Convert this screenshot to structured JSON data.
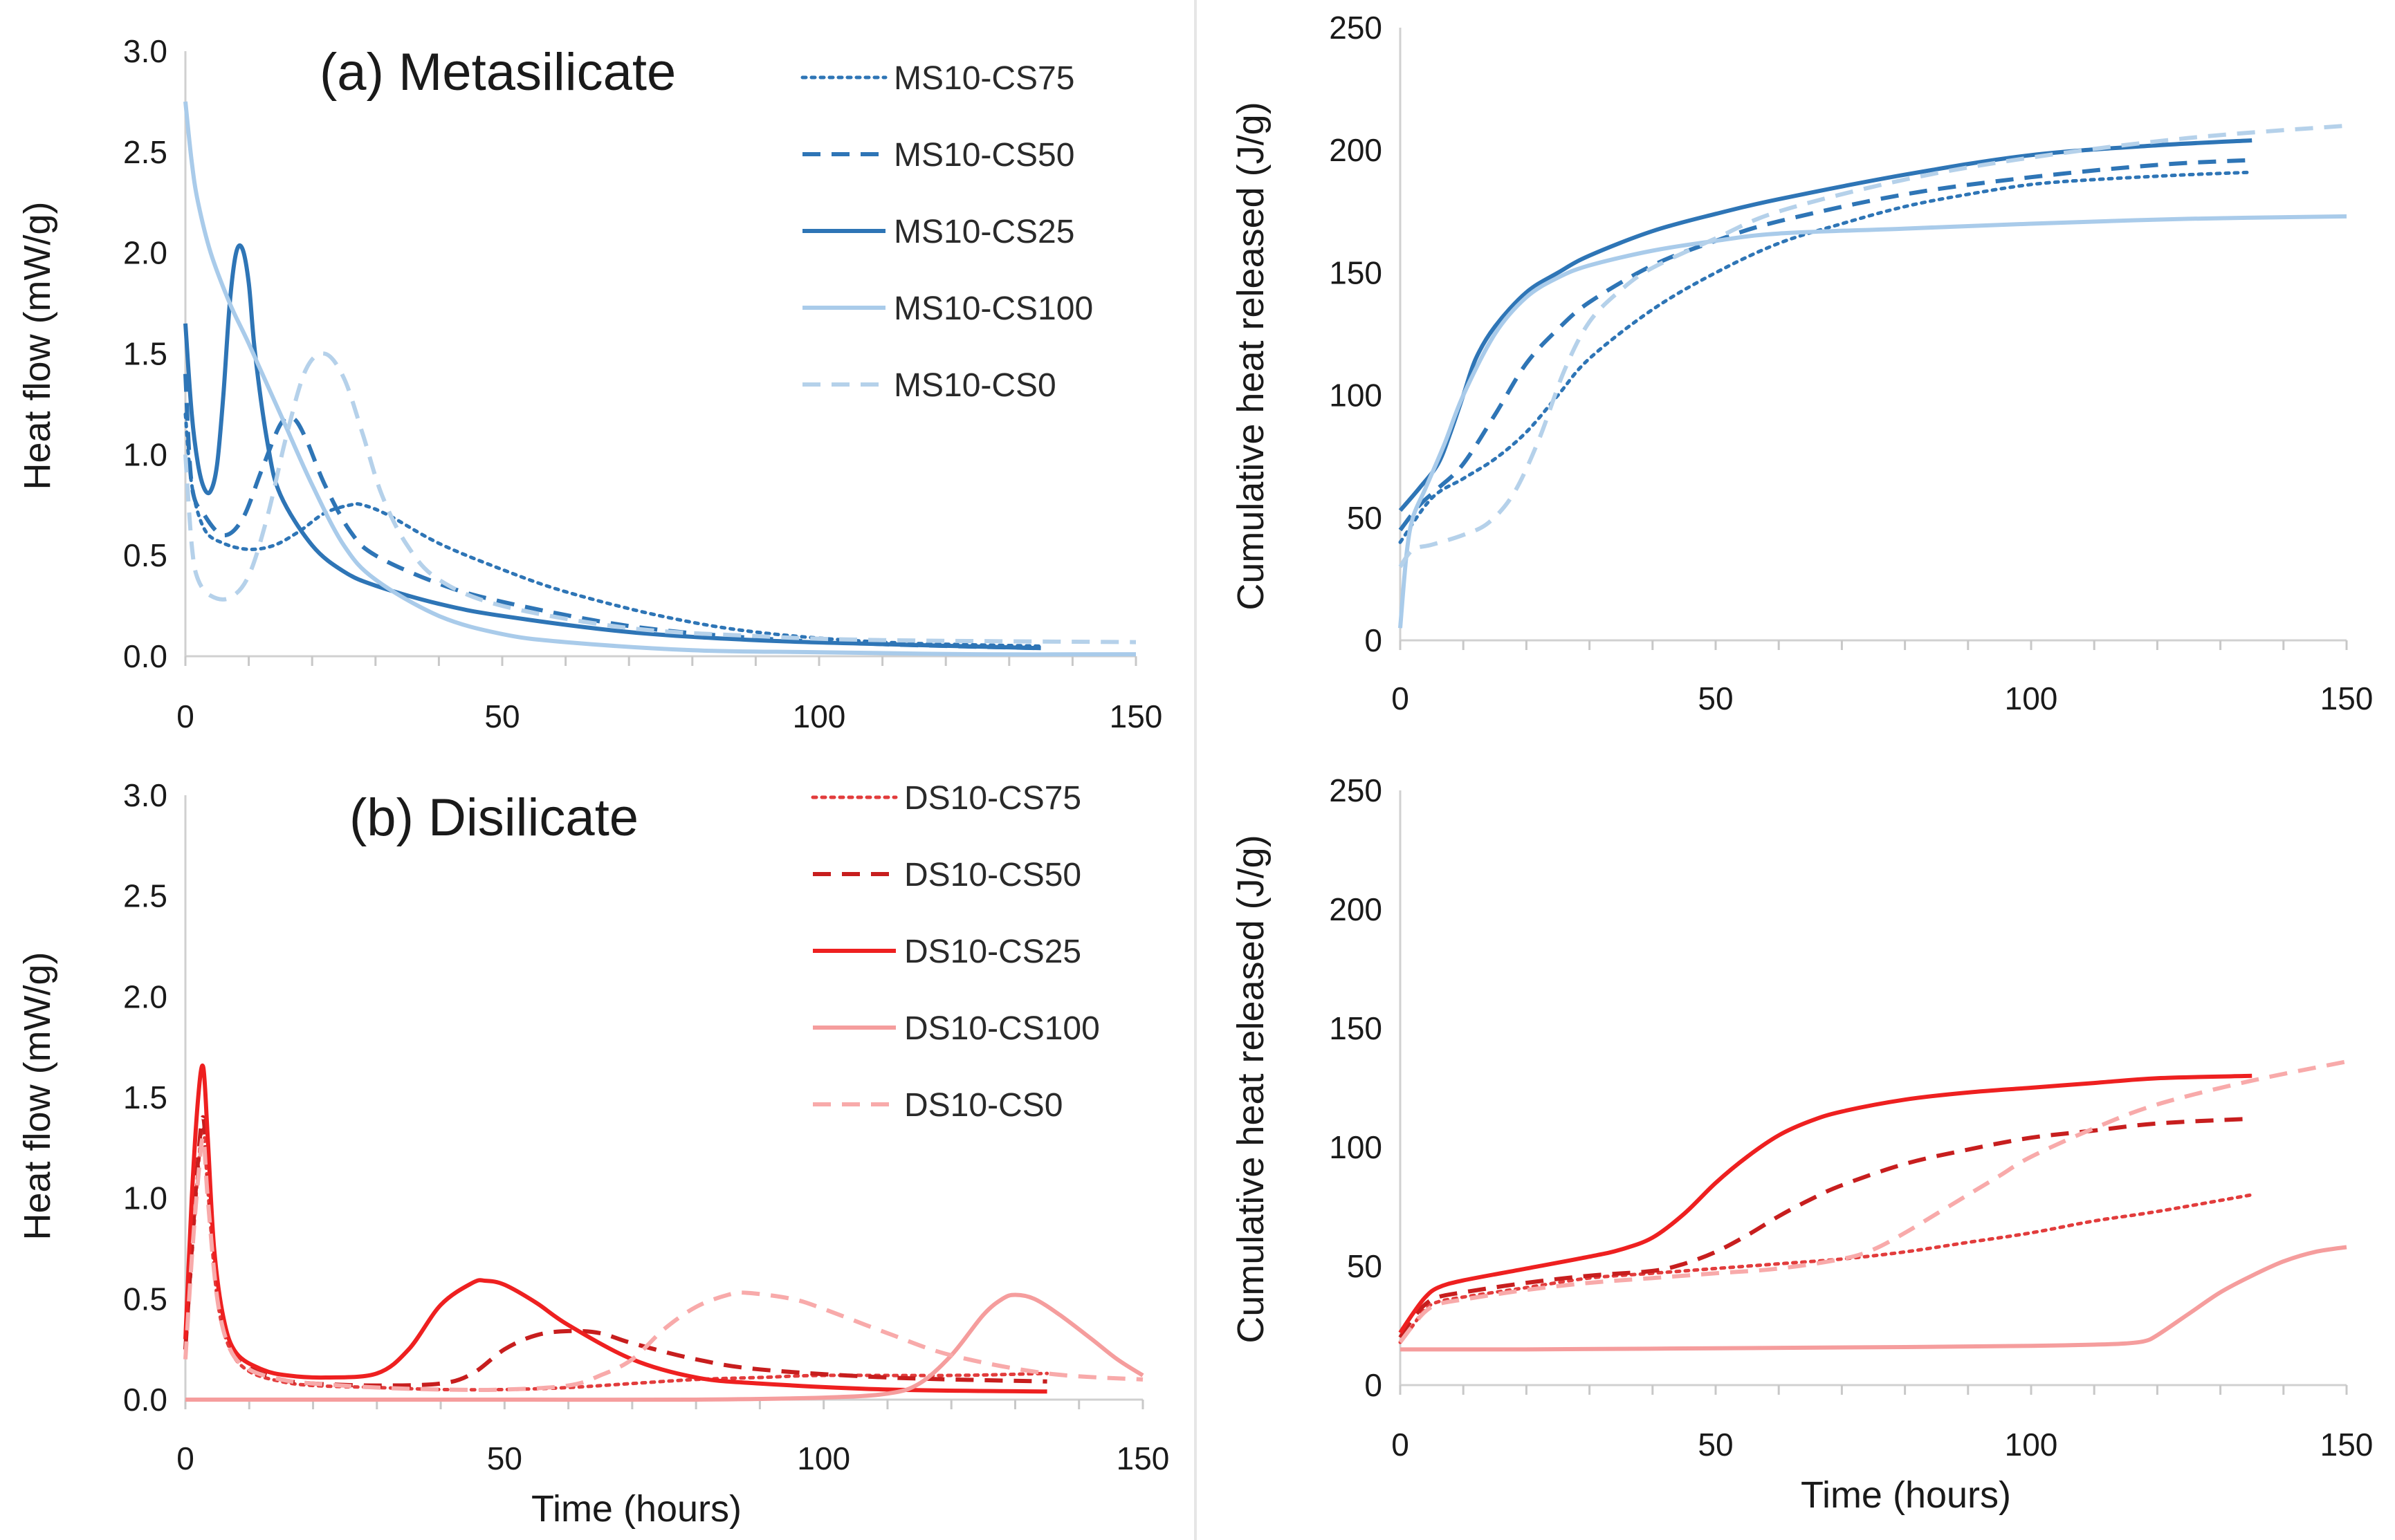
{
  "chart_data": [
    {
      "id": "hf-ms",
      "type": "line",
      "title": "(a) Metasilicate",
      "xlabel": "",
      "ylabel": "Heat flow (mW/g)",
      "xlim": [
        0,
        150
      ],
      "ylim": [
        0,
        3.0
      ],
      "xticks": [
        0,
        50,
        100,
        150
      ],
      "yticks": [
        0.0,
        0.5,
        1.0,
        1.5,
        2.0,
        2.5,
        3.0
      ],
      "ytick_decimals": 1,
      "legend": "top-right",
      "series": [
        {
          "name": "MS10-CS75",
          "color": "#2e75b6",
          "dash": "dotted",
          "x": [
            0,
            1,
            3,
            6,
            10,
            14,
            18,
            22,
            26,
            28,
            32,
            40,
            50,
            60,
            75,
            90,
            110,
            135
          ],
          "y": [
            1.2,
            0.85,
            0.63,
            0.56,
            0.53,
            0.55,
            0.62,
            0.71,
            0.75,
            0.75,
            0.7,
            0.56,
            0.43,
            0.32,
            0.2,
            0.12,
            0.07,
            0.05
          ]
        },
        {
          "name": "MS10-CS50",
          "color": "#2e75b6",
          "dash": "dashed",
          "x": [
            0,
            1,
            3,
            6,
            9,
            12,
            15,
            17,
            19,
            22,
            26,
            30,
            40,
            50,
            70,
            90,
            110,
            135
          ],
          "y": [
            1.4,
            0.85,
            0.7,
            0.6,
            0.68,
            0.92,
            1.15,
            1.18,
            1.08,
            0.85,
            0.62,
            0.5,
            0.36,
            0.27,
            0.15,
            0.09,
            0.06,
            0.04
          ]
        },
        {
          "name": "MS10-CS25",
          "color": "#2e75b6",
          "dash": "solid",
          "x": [
            0,
            1,
            2,
            3,
            4,
            5,
            6,
            7,
            8,
            9,
            10,
            11,
            13,
            15,
            20,
            25,
            30,
            40,
            50,
            70,
            90,
            110,
            135
          ],
          "y": [
            1.65,
            1.2,
            0.95,
            0.83,
            0.82,
            0.95,
            1.3,
            1.75,
            2.0,
            2.02,
            1.85,
            1.5,
            1.05,
            0.8,
            0.55,
            0.42,
            0.35,
            0.26,
            0.2,
            0.12,
            0.08,
            0.06,
            0.04
          ]
        },
        {
          "name": "MS10-CS100",
          "color": "#a9cbea",
          "dash": "solid",
          "x": [
            0,
            1,
            2,
            4,
            7,
            10,
            15,
            20,
            25,
            30,
            40,
            50,
            60,
            80,
            100,
            125,
            150
          ],
          "y": [
            2.75,
            2.45,
            2.25,
            2.0,
            1.75,
            1.55,
            1.2,
            0.85,
            0.55,
            0.38,
            0.2,
            0.11,
            0.07,
            0.03,
            0.02,
            0.01,
            0.01
          ]
        },
        {
          "name": "MS10-CS0",
          "color": "#b5d1ea",
          "dash": "dashed",
          "x": [
            0,
            1,
            2,
            4,
            7,
            10,
            13,
            16,
            19,
            22,
            25,
            28,
            31,
            35,
            40,
            50,
            70,
            90,
            110,
            150
          ],
          "y": [
            1.0,
            0.55,
            0.38,
            0.3,
            0.29,
            0.4,
            0.7,
            1.1,
            1.42,
            1.5,
            1.38,
            1.1,
            0.8,
            0.55,
            0.38,
            0.25,
            0.14,
            0.1,
            0.08,
            0.07
          ]
        }
      ]
    },
    {
      "id": "cum-ms",
      "type": "line",
      "title": "",
      "xlabel": "",
      "ylabel": "Cumulative heat released (J/g)",
      "xlim": [
        0,
        150
      ],
      "ylim": [
        0,
        250
      ],
      "xticks": [
        0,
        50,
        100,
        150
      ],
      "yticks": [
        0,
        50,
        100,
        150,
        200,
        250
      ],
      "ytick_decimals": 0,
      "legend": "none",
      "series": [
        {
          "name": "MS10-CS75",
          "color": "#2e75b6",
          "dash": "dotted",
          "x": [
            0,
            5,
            10,
            15,
            20,
            25,
            30,
            40,
            50,
            60,
            70,
            80,
            90,
            100,
            110,
            125,
            135
          ],
          "y": [
            40,
            58,
            66,
            74,
            85,
            100,
            115,
            135,
            150,
            162,
            170,
            177,
            182,
            186,
            188,
            190,
            191
          ]
        },
        {
          "name": "MS10-CS50",
          "color": "#2e75b6",
          "dash": "dashed",
          "x": [
            0,
            3,
            6,
            10,
            15,
            20,
            25,
            30,
            40,
            50,
            60,
            80,
            100,
            120,
            135
          ],
          "y": [
            45,
            55,
            62,
            72,
            92,
            113,
            127,
            138,
            153,
            163,
            171,
            182,
            189,
            194,
            196
          ]
        },
        {
          "name": "MS10-CS25",
          "color": "#2e75b6",
          "dash": "solid",
          "x": [
            0,
            3,
            6,
            8,
            10,
            12,
            15,
            20,
            25,
            30,
            40,
            50,
            60,
            80,
            100,
            120,
            135
          ],
          "y": [
            53,
            62,
            72,
            85,
            100,
            115,
            128,
            142,
            150,
            157,
            167,
            174,
            180,
            190,
            198,
            202,
            204
          ]
        },
        {
          "name": "MS10-CS100",
          "color": "#a9cbea",
          "dash": "solid",
          "x": [
            0,
            1,
            2,
            4,
            7,
            10,
            15,
            20,
            25,
            30,
            40,
            50,
            60,
            80,
            100,
            125,
            150
          ],
          "y": [
            5,
            35,
            50,
            62,
            80,
            100,
            125,
            140,
            148,
            153,
            159,
            163,
            166,
            168,
            170,
            172,
            173
          ]
        },
        {
          "name": "MS10-CS0",
          "color": "#b5d1ea",
          "dash": "dashed",
          "x": [
            0,
            2,
            5,
            10,
            14,
            18,
            22,
            26,
            30,
            35,
            40,
            50,
            60,
            80,
            100,
            125,
            150
          ],
          "y": [
            30,
            37,
            39,
            43,
            48,
            60,
            82,
            110,
            130,
            143,
            152,
            164,
            175,
            188,
            197,
            205,
            210
          ]
        }
      ]
    },
    {
      "id": "hf-ds",
      "type": "line",
      "title": "(b) Disilicate",
      "xlabel": "Time (hours)",
      "ylabel": "Heat flow (mW/g)",
      "xlim": [
        0,
        150
      ],
      "ylim": [
        0,
        3.0
      ],
      "xticks": [
        0,
        50,
        100,
        150
      ],
      "yticks": [
        0.0,
        0.5,
        1.0,
        1.5,
        2.0,
        2.5,
        3.0
      ],
      "ytick_decimals": 1,
      "legend": "top-right",
      "series": [
        {
          "name": "DS10-CS75",
          "color": "#e23c3c",
          "dash": "dotted",
          "x": [
            0,
            1,
            2,
            2.8,
            3.5,
            5,
            7,
            10,
            15,
            20,
            30,
            40,
            50,
            60,
            70,
            80,
            90,
            100,
            120,
            135
          ],
          "y": [
            0.25,
            0.7,
            1.15,
            1.35,
            1.05,
            0.5,
            0.25,
            0.14,
            0.09,
            0.07,
            0.06,
            0.05,
            0.05,
            0.06,
            0.08,
            0.1,
            0.11,
            0.12,
            0.12,
            0.13
          ]
        },
        {
          "name": "DS10-CS50",
          "color": "#c71e1e",
          "dash": "dashed",
          "x": [
            0,
            1,
            2,
            2.8,
            3.5,
            5,
            7,
            10,
            15,
            20,
            30,
            40,
            45,
            50,
            55,
            60,
            65,
            70,
            80,
            90,
            110,
            135
          ],
          "y": [
            0.25,
            0.75,
            1.2,
            1.4,
            1.1,
            0.55,
            0.28,
            0.16,
            0.1,
            0.08,
            0.07,
            0.08,
            0.13,
            0.25,
            0.32,
            0.34,
            0.33,
            0.28,
            0.2,
            0.15,
            0.11,
            0.09
          ]
        },
        {
          "name": "DS10-CS25",
          "color": "#ee2020",
          "dash": "solid",
          "x": [
            0,
            1,
            2,
            2.8,
            3.5,
            4.5,
            6,
            8,
            12,
            16,
            22,
            30,
            35,
            40,
            45,
            47,
            50,
            55,
            60,
            70,
            80,
            90,
            110,
            135
          ],
          "y": [
            0.3,
            1.0,
            1.5,
            1.65,
            1.3,
            0.75,
            0.4,
            0.23,
            0.15,
            0.12,
            0.11,
            0.13,
            0.25,
            0.47,
            0.58,
            0.59,
            0.57,
            0.48,
            0.37,
            0.2,
            0.11,
            0.08,
            0.05,
            0.04
          ]
        },
        {
          "name": "DS10-CS100",
          "color": "#f59d9d",
          "dash": "solid",
          "x": [
            0,
            20,
            50,
            80,
            100,
            110,
            115,
            120,
            125,
            128,
            130,
            133,
            137,
            142,
            146,
            150
          ],
          "y": [
            0.0,
            0.0,
            0.0,
            0.0,
            0.01,
            0.03,
            0.08,
            0.22,
            0.42,
            0.5,
            0.52,
            0.5,
            0.42,
            0.3,
            0.2,
            0.12
          ]
        },
        {
          "name": "DS10-CS0",
          "color": "#f8aaaa",
          "dash": "dashed",
          "x": [
            0,
            1,
            2,
            2.8,
            3.5,
            5,
            7,
            10,
            15,
            20,
            30,
            40,
            50,
            60,
            65,
            70,
            75,
            80,
            85,
            88,
            95,
            100,
            110,
            120,
            135,
            150
          ],
          "y": [
            0.2,
            0.7,
            1.1,
            1.3,
            1.0,
            0.5,
            0.25,
            0.15,
            0.1,
            0.08,
            0.06,
            0.05,
            0.05,
            0.07,
            0.12,
            0.2,
            0.35,
            0.46,
            0.52,
            0.53,
            0.5,
            0.45,
            0.33,
            0.22,
            0.13,
            0.1
          ]
        }
      ]
    },
    {
      "id": "cum-ds",
      "type": "line",
      "title": "",
      "xlabel": "Time (hours)",
      "ylabel": "Cumulative heat released (J/g)",
      "xlim": [
        0,
        150
      ],
      "ylim": [
        0,
        250
      ],
      "xticks": [
        0,
        50,
        100,
        150
      ],
      "yticks": [
        0,
        50,
        100,
        150,
        200,
        250
      ],
      "ytick_decimals": 0,
      "legend": "none",
      "series": [
        {
          "name": "DS10-CS75",
          "color": "#e23c3c",
          "dash": "dotted",
          "x": [
            0,
            2,
            4,
            6,
            10,
            20,
            30,
            40,
            50,
            60,
            70,
            80,
            90,
            100,
            110,
            120,
            135
          ],
          "y": [
            18,
            25,
            32,
            35,
            37,
            41,
            45,
            47,
            49,
            51,
            53,
            56,
            60,
            64,
            69,
            73,
            80
          ]
        },
        {
          "name": "DS10-CS50",
          "color": "#c71e1e",
          "dash": "dashed",
          "x": [
            0,
            2,
            4,
            6,
            10,
            20,
            30,
            40,
            45,
            50,
            55,
            60,
            65,
            70,
            80,
            90,
            100,
            110,
            120,
            135
          ],
          "y": [
            20,
            28,
            34,
            37,
            39,
            43,
            46,
            48,
            51,
            56,
            63,
            71,
            78,
            84,
            93,
            99,
            104,
            107,
            110,
            112
          ]
        },
        {
          "name": "DS10-CS25",
          "color": "#ee2020",
          "dash": "solid",
          "x": [
            0,
            2,
            4,
            6,
            10,
            20,
            30,
            35,
            40,
            45,
            50,
            55,
            60,
            65,
            70,
            80,
            90,
            100,
            110,
            120,
            135
          ],
          "y": [
            22,
            30,
            37,
            41,
            44,
            49,
            54,
            57,
            62,
            72,
            85,
            96,
            105,
            111,
            115,
            120,
            123,
            125,
            127,
            129,
            130
          ]
        },
        {
          "name": "DS10-CS100",
          "color": "#f59d9d",
          "dash": "solid",
          "x": [
            0,
            20,
            50,
            80,
            100,
            110,
            115,
            118,
            120,
            125,
            130,
            135,
            140,
            145,
            150
          ],
          "y": [
            15,
            15,
            15.5,
            16,
            16.5,
            17,
            17.5,
            18.5,
            21,
            30,
            39,
            46,
            52,
            56,
            58
          ]
        },
        {
          "name": "DS10-CS0",
          "color": "#f8aaaa",
          "dash": "dashed",
          "x": [
            0,
            2,
            4,
            6,
            10,
            20,
            30,
            40,
            50,
            60,
            70,
            75,
            80,
            85,
            90,
            95,
            100,
            110,
            120,
            135,
            150
          ],
          "y": [
            18,
            25,
            31,
            34,
            36,
            40,
            43,
            45,
            47,
            49,
            53,
            57,
            64,
            72,
            80,
            88,
            96,
            108,
            118,
            128,
            136
          ]
        }
      ]
    }
  ]
}
